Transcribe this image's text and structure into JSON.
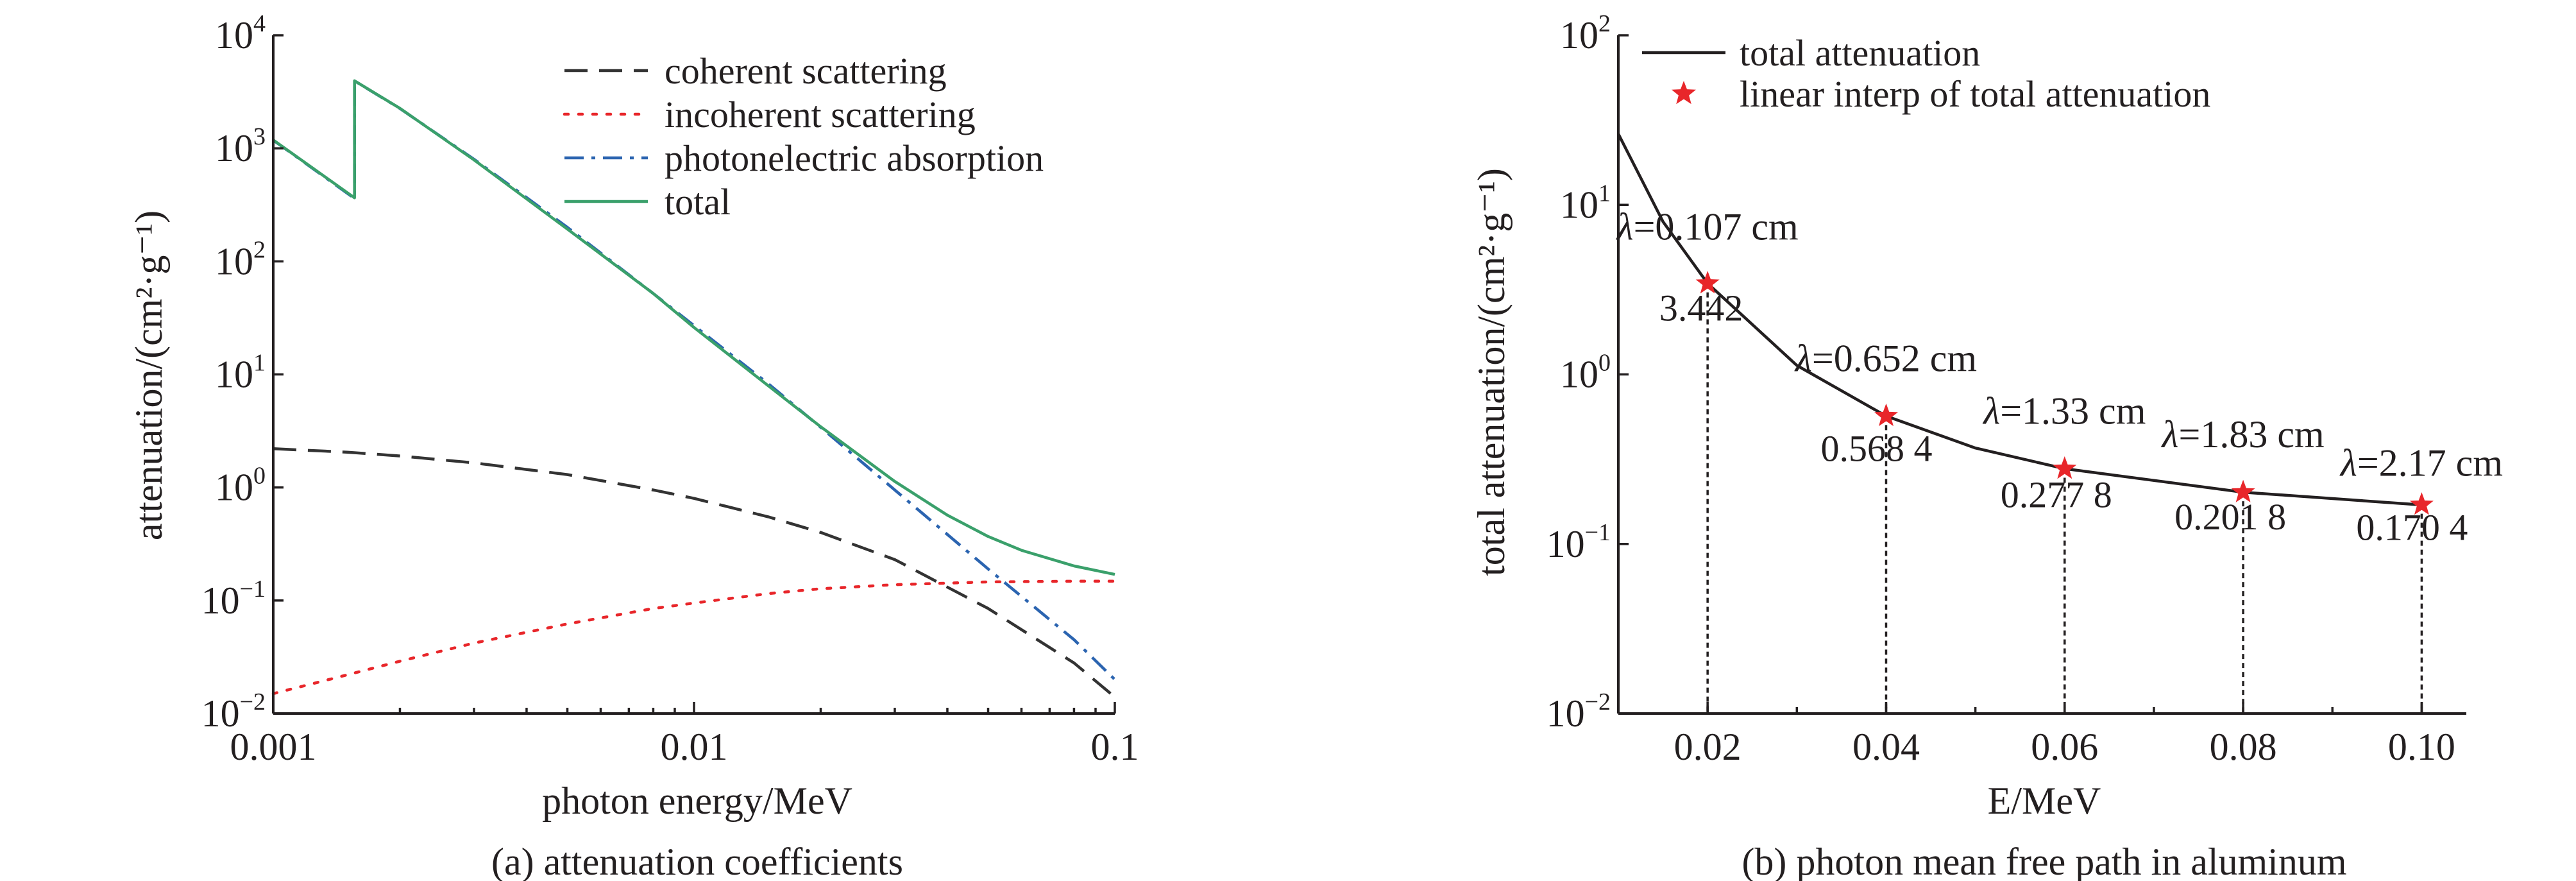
{
  "chart_data": [
    {
      "type": "line",
      "caption": "(a) attenuation coefficients",
      "xlabel": "photon energy/MeV",
      "ylabel": "attenuation/(cm²·g⁻¹)",
      "xscale": "log",
      "yscale": "log",
      "xlim": [
        0.001,
        0.1
      ],
      "ylim": [
        0.01,
        10000
      ],
      "xticks": [
        {
          "value": 0.001,
          "label": "0.001"
        },
        {
          "value": 0.01,
          "label": "0.01"
        },
        {
          "value": 0.1,
          "label": "0.1"
        }
      ],
      "yticks": [
        {
          "value": 0.01,
          "base": "10",
          "exp": "−2"
        },
        {
          "value": 0.1,
          "base": "10",
          "exp": "−1"
        },
        {
          "value": 1,
          "base": "10",
          "exp": "0"
        },
        {
          "value": 10,
          "base": "10",
          "exp": "1"
        },
        {
          "value": 100,
          "base": "10",
          "exp": "2"
        },
        {
          "value": 1000,
          "base": "10",
          "exp": "3"
        },
        {
          "value": 10000,
          "base": "10",
          "exp": "4"
        }
      ],
      "legend_position": "top-right",
      "series": [
        {
          "name": "coherent scattering",
          "color": "#333333",
          "style": "dashed",
          "x": [
            0.001,
            0.0015,
            0.002,
            0.003,
            0.005,
            0.008,
            0.01,
            0.015,
            0.02,
            0.03,
            0.05,
            0.08,
            0.1
          ],
          "y": [
            2.2,
            2.05,
            1.9,
            1.65,
            1.3,
            0.95,
            0.8,
            0.55,
            0.4,
            0.23,
            0.085,
            0.028,
            0.014
          ]
        },
        {
          "name": "incoherent scattering",
          "color": "#e8262a",
          "style": "dotted",
          "x": [
            0.001,
            0.0015,
            0.002,
            0.003,
            0.005,
            0.008,
            0.01,
            0.015,
            0.02,
            0.03,
            0.05,
            0.08,
            0.1
          ],
          "y": [
            0.015,
            0.022,
            0.029,
            0.042,
            0.062,
            0.085,
            0.095,
            0.115,
            0.127,
            0.138,
            0.146,
            0.148,
            0.148
          ]
        },
        {
          "name": "photonelectric absorption",
          "color": "#2b64b0",
          "style": "dashdot",
          "x": [
            0.001,
            0.00156,
            0.00156,
            0.002,
            0.003,
            0.005,
            0.008,
            0.01,
            0.015,
            0.02,
            0.03,
            0.05,
            0.08,
            0.1
          ],
          "y": [
            1180,
            360,
            3950,
            2250,
            800,
            200,
            52,
            27,
            8.3,
            3.4,
            0.95,
            0.19,
            0.045,
            0.02
          ]
        },
        {
          "name": "total",
          "color": "#3aa06b",
          "style": "solid",
          "x": [
            0.001,
            0.00156,
            0.00156,
            0.002,
            0.003,
            0.005,
            0.008,
            0.01,
            0.015,
            0.02,
            0.03,
            0.04,
            0.05,
            0.06,
            0.08,
            0.1
          ],
          "y": [
            1185,
            365,
            3960,
            2260,
            790,
            193,
            52,
            26,
            7.96,
            3.44,
            1.13,
            0.568,
            0.368,
            0.278,
            0.202,
            0.17
          ]
        }
      ]
    },
    {
      "type": "line",
      "caption": "(b) photon mean free path in aluminum",
      "xlabel": "E/MeV",
      "ylabel": "total attenuation/(cm²·g⁻¹)",
      "xscale": "linear",
      "yscale": "log",
      "xlim": [
        0.01,
        0.105
      ],
      "ylim": [
        0.01,
        100
      ],
      "xticks": [
        {
          "value": 0.02,
          "label": "0.02"
        },
        {
          "value": 0.04,
          "label": "0.04"
        },
        {
          "value": 0.06,
          "label": "0.06"
        },
        {
          "value": 0.08,
          "label": "0.08"
        },
        {
          "value": 0.1,
          "label": "0.10"
        }
      ],
      "yticks": [
        {
          "value": 0.01,
          "base": "10",
          "exp": "−2"
        },
        {
          "value": 0.1,
          "base": "10",
          "exp": "−1"
        },
        {
          "value": 1,
          "base": "10",
          "exp": "0"
        },
        {
          "value": 10,
          "base": "10",
          "exp": "1"
        },
        {
          "value": 100,
          "base": "10",
          "exp": "2"
        }
      ],
      "legend_position": "top-left",
      "series": [
        {
          "name": "total attenuation",
          "color": "#231f20",
          "style": "solid",
          "x": [
            0.01,
            0.015,
            0.02,
            0.03,
            0.04,
            0.05,
            0.06,
            0.08,
            0.1
          ],
          "y": [
            26.2,
            7.96,
            3.44,
            1.13,
            0.568,
            0.368,
            0.278,
            0.202,
            0.17
          ]
        },
        {
          "name": "linear interp of total attenuation",
          "color": "#e8262a",
          "style": "star",
          "x": [
            0.02,
            0.04,
            0.06,
            0.08,
            0.1
          ],
          "y": [
            3.442,
            0.5684,
            0.2778,
            0.2018,
            0.1704
          ]
        }
      ],
      "annotations": [
        {
          "x": 0.02,
          "y": 3.442,
          "value_label": "3.442",
          "lambda_label": "=0.107 cm"
        },
        {
          "x": 0.04,
          "y": 0.5684,
          "value_label": "0.568 4",
          "lambda_label": "=0.652 cm"
        },
        {
          "x": 0.06,
          "y": 0.2778,
          "value_label": "0.277 8",
          "lambda_label": "=1.33 cm"
        },
        {
          "x": 0.08,
          "y": 0.2018,
          "value_label": "0.201 8",
          "lambda_label": "=1.83 cm"
        },
        {
          "x": 0.1,
          "y": 0.1704,
          "value_label": "0.170 4",
          "lambda_label": "=2.17 cm"
        }
      ]
    }
  ]
}
